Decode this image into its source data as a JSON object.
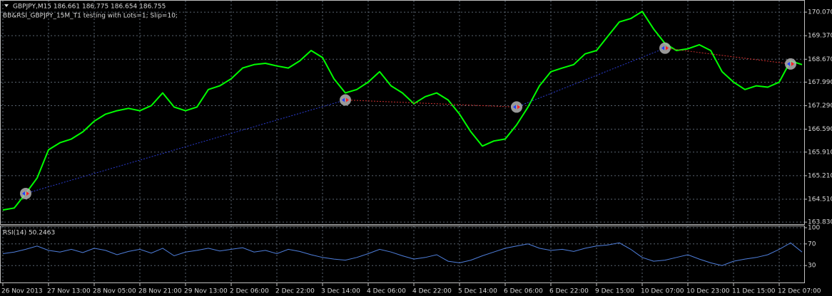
{
  "chart_data": [
    {
      "type": "line",
      "title": "GBPJPY,M15  186.661 186.775 186.654 186.755",
      "subtitle": "BB&RSI_GBPJPY_15M_T1 testing with Lots=1; Slip=10;",
      "categories": [
        "26 Nov 2013",
        null,
        null,
        null,
        "27 Nov 13:00",
        null,
        null,
        null,
        "28 Nov 05:00",
        null,
        null,
        null,
        "28 Nov 21:00",
        null,
        null,
        null,
        "29 Nov 13:00",
        null,
        null,
        null,
        "2 Dec 06:00",
        null,
        null,
        null,
        "2 Dec 22:00",
        null,
        null,
        null,
        "3 Dec 14:00",
        null,
        null,
        null,
        "4 Dec 06:00",
        null,
        null,
        null,
        "4 Dec 22:00",
        null,
        null,
        null,
        "5 Dec 14:00",
        null,
        null,
        null,
        "6 Dec 06:00",
        null,
        null,
        null,
        "6 Dec 22:00",
        null,
        null,
        null,
        "9 Dec 15:00",
        null,
        null,
        null,
        "10 Dec 07:00",
        null,
        null,
        null,
        "10 Dec 23:00",
        null,
        null,
        null,
        "11 Dec 15:00",
        null,
        null,
        null,
        "12 Dec 07:00",
        null,
        null
      ],
      "series": [
        {
          "color": "#00ff00",
          "values": [
            164.19,
            164.25,
            164.68,
            165.14,
            165.98,
            166.19,
            166.3,
            166.51,
            166.83,
            167.04,
            167.14,
            167.21,
            167.14,
            167.29,
            167.67,
            167.25,
            167.14,
            167.25,
            167.77,
            167.88,
            168.09,
            168.41,
            168.51,
            168.55,
            168.47,
            168.41,
            168.62,
            168.93,
            168.72,
            168.09,
            167.67,
            167.77,
            167.99,
            168.3,
            167.88,
            167.67,
            167.35,
            167.56,
            167.67,
            167.46,
            167.04,
            166.51,
            166.09,
            166.24,
            166.3,
            166.72,
            167.25,
            167.88,
            168.3,
            168.41,
            168.51,
            168.83,
            168.93,
            169.36,
            169.78,
            169.88,
            170.09,
            169.57,
            169.14,
            168.93,
            168.98,
            169.1,
            168.93,
            168.3,
            167.99,
            167.77,
            167.88,
            167.84,
            167.99,
            168.62,
            168.51
          ]
        },
        {
          "color": "#b4b4b4",
          "values": [
            null,
            null,
            164.68,
            null,
            null,
            null,
            null,
            null,
            null,
            null,
            null,
            null,
            null,
            null,
            null,
            null,
            null,
            null,
            null,
            null,
            null,
            null,
            null,
            null,
            null,
            null,
            null,
            null,
            null,
            null,
            167.46,
            null,
            null,
            null,
            null,
            null,
            null,
            null,
            null,
            null,
            null,
            null,
            null,
            null,
            null,
            167.25,
            null,
            null,
            null,
            null,
            null,
            null,
            null,
            null,
            null,
            null,
            null,
            null,
            169.0,
            null,
            null,
            null,
            null,
            null,
            null,
            null,
            null,
            null,
            null,
            168.53,
            null
          ]
        }
      ],
      "ylim": [
        163.77,
        170.41
      ],
      "yticks": [
        {
          "value": 170.07,
          "label": "170.070"
        },
        {
          "value": 169.37,
          "label": "169.370"
        },
        {
          "value": 168.67,
          "label": "168.670"
        },
        {
          "value": 167.99,
          "label": "167.990"
        },
        {
          "value": 167.29,
          "label": "167.290"
        },
        {
          "value": 166.59,
          "label": "166.590"
        },
        {
          "value": 165.91,
          "label": "165.910"
        },
        {
          "value": 165.21,
          "label": "165.210"
        },
        {
          "value": 164.51,
          "label": "164.510"
        },
        {
          "value": 163.83,
          "label": "163.830"
        }
      ],
      "grid": true
    },
    {
      "type": "line",
      "title": "RSI(14) 50.2463",
      "color": "#4f7fdc",
      "values": [
        52,
        55,
        60,
        66,
        58,
        55,
        60,
        54,
        62,
        58,
        50,
        56,
        60,
        53,
        62,
        48,
        55,
        58,
        62,
        57,
        60,
        63,
        55,
        58,
        52,
        60,
        56,
        50,
        45,
        42,
        40,
        45,
        52,
        60,
        55,
        48,
        42,
        45,
        50,
        38,
        35,
        40,
        48,
        55,
        62,
        66,
        70,
        62,
        58,
        60,
        56,
        62,
        66,
        68,
        72,
        60,
        45,
        38,
        40,
        45,
        50,
        42,
        35,
        30,
        38,
        42,
        45,
        50,
        60,
        72,
        55
      ],
      "ylim": [
        0,
        100
      ],
      "yticks": [
        100,
        70,
        30
      ],
      "grid": true
    }
  ]
}
